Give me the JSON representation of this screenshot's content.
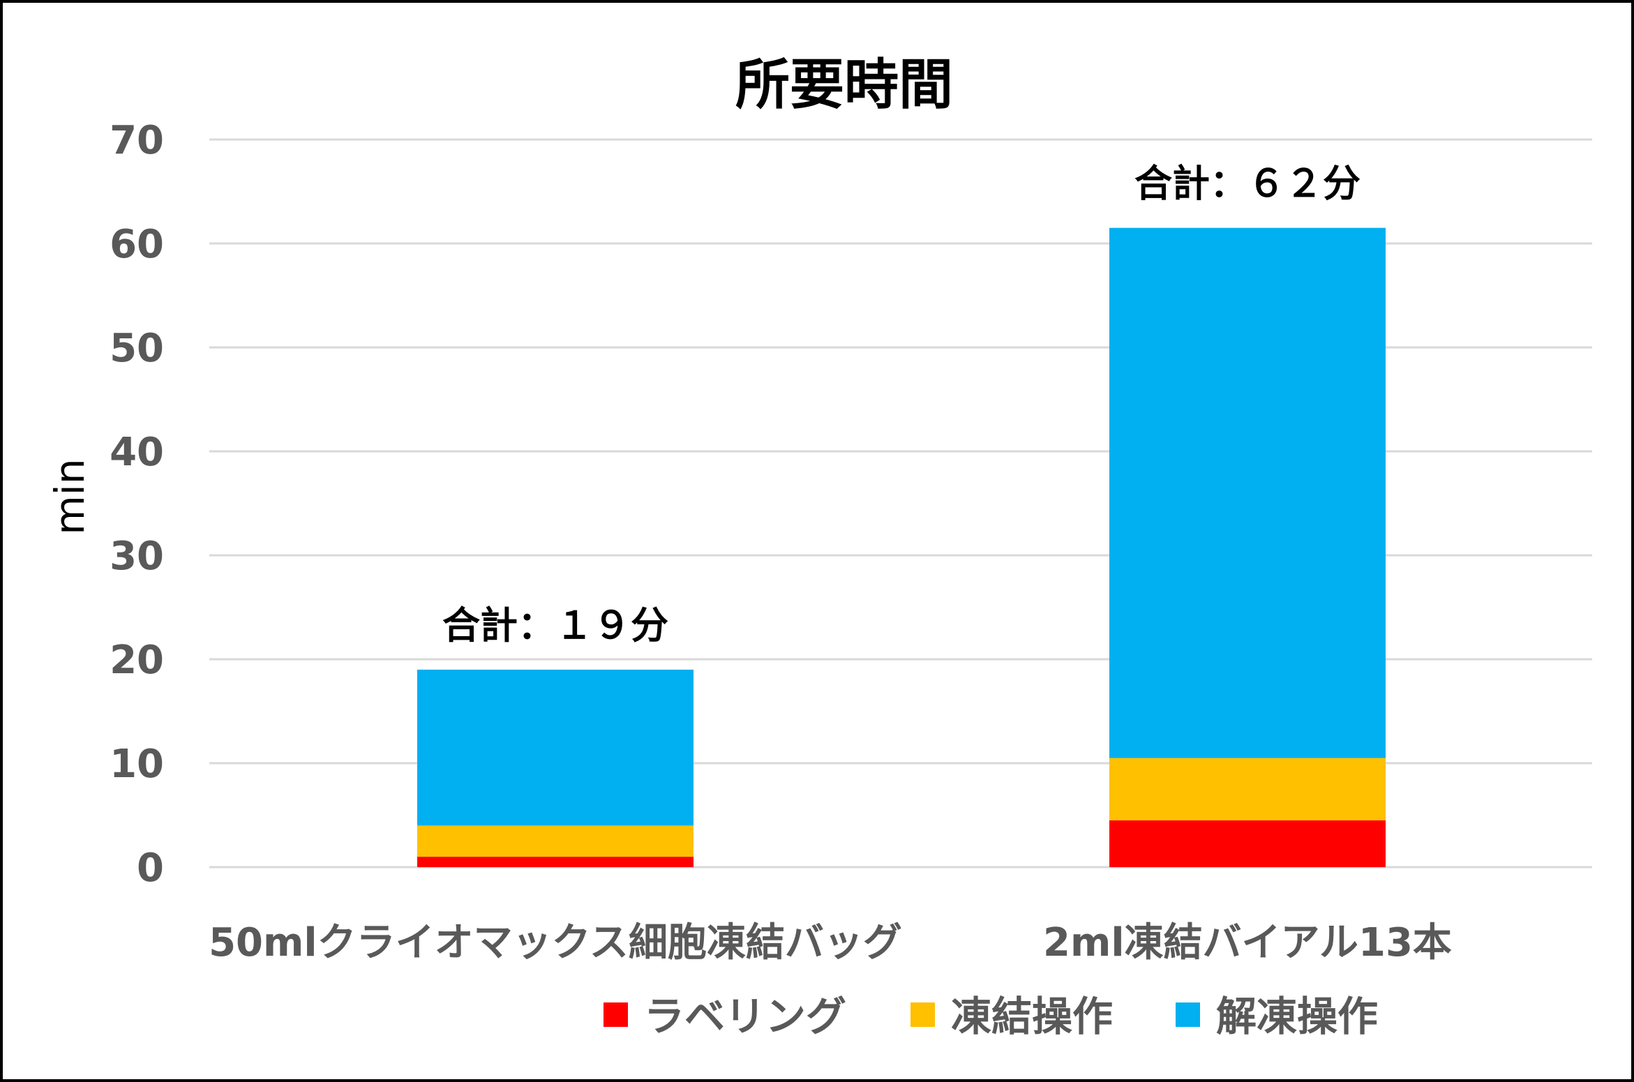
{
  "chart_data": {
    "type": "bar",
    "stacked": true,
    "title": "所要時間",
    "ylabel": "min",
    "xlabel": "",
    "ylim": [
      0,
      70
    ],
    "yticks": [
      0,
      10,
      20,
      30,
      40,
      50,
      60,
      70
    ],
    "grid": true,
    "legend_position": "bottom",
    "categories": [
      "50mlクライオマックス細胞凍結バッグ",
      "2ml凍結バイアル13本"
    ],
    "series": [
      {
        "name": "ラベリング",
        "color": "#ff0000",
        "values": [
          1,
          4.5
        ]
      },
      {
        "name": "凍結操作",
        "color": "#ffc000",
        "values": [
          3,
          6
        ]
      },
      {
        "name": "解凍操作",
        "color": "#00b0f0",
        "values": [
          15,
          51
        ]
      }
    ],
    "annotations": [
      "合計：１９分",
      "合計：６２分"
    ]
  }
}
